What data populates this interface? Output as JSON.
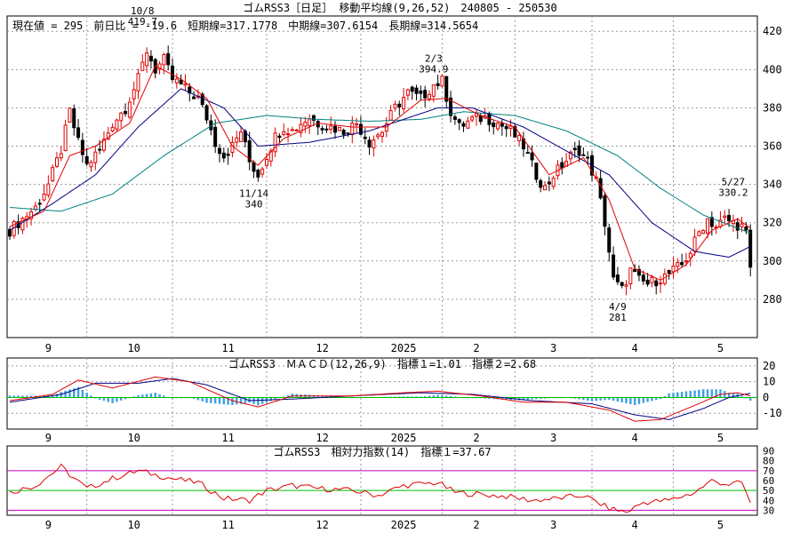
{
  "chart_data": [
    {
      "type": "candlestick",
      "panel": "price",
      "title": "ゴムRSS3［日足］ 移動平均線(9,26,52)　240805 - 250530",
      "info": "現在値 = 295　前日比 = -19.6　短期線=317.1778　中期線=307.6154　長期線=314.5654",
      "y_ticks": [
        420,
        400,
        380,
        360,
        340,
        320,
        300,
        280
      ],
      "ylim": [
        260,
        428
      ],
      "x_ticks": [
        "9",
        "10",
        "11",
        "12",
        "2025",
        "2",
        "3",
        "4",
        "5"
      ],
      "annotations": [
        {
          "date": "10/8",
          "value": "419.7"
        },
        {
          "date": "11/14",
          "value": "340"
        },
        {
          "date": "2/3",
          "value": "394.9"
        },
        {
          "date": "4/9",
          "value": "281"
        },
        {
          "date": "5/27",
          "value": "330.2"
        }
      ],
      "close_path": [
        {
          "t": 0,
          "v": 316
        },
        {
          "t": 3,
          "v": 322
        },
        {
          "t": 6,
          "v": 328
        },
        {
          "t": 9,
          "v": 340
        },
        {
          "t": 12,
          "v": 358
        },
        {
          "t": 14,
          "v": 378
        },
        {
          "t": 16,
          "v": 362
        },
        {
          "t": 18,
          "v": 350
        },
        {
          "t": 21,
          "v": 358
        },
        {
          "t": 24,
          "v": 372
        },
        {
          "t": 27,
          "v": 380
        },
        {
          "t": 30,
          "v": 395
        },
        {
          "t": 32,
          "v": 410
        },
        {
          "t": 34,
          "v": 400
        },
        {
          "t": 36,
          "v": 405
        },
        {
          "t": 38,
          "v": 395
        },
        {
          "t": 40,
          "v": 392
        },
        {
          "t": 42,
          "v": 388
        },
        {
          "t": 44,
          "v": 385
        },
        {
          "t": 46,
          "v": 375
        },
        {
          "t": 48,
          "v": 362
        },
        {
          "t": 50,
          "v": 355
        },
        {
          "t": 52,
          "v": 360
        },
        {
          "t": 54,
          "v": 368
        },
        {
          "t": 56,
          "v": 352
        },
        {
          "t": 58,
          "v": 345
        },
        {
          "t": 60,
          "v": 355
        },
        {
          "t": 62,
          "v": 365
        },
        {
          "t": 64,
          "v": 370
        },
        {
          "t": 66,
          "v": 368
        },
        {
          "t": 68,
          "v": 372
        },
        {
          "t": 70,
          "v": 375
        },
        {
          "t": 72,
          "v": 372
        },
        {
          "t": 75,
          "v": 370
        },
        {
          "t": 78,
          "v": 368
        },
        {
          "t": 81,
          "v": 372
        },
        {
          "t": 84,
          "v": 362
        },
        {
          "t": 87,
          "v": 368
        },
        {
          "t": 90,
          "v": 380
        },
        {
          "t": 93,
          "v": 388
        },
        {
          "t": 96,
          "v": 385
        },
        {
          "t": 99,
          "v": 392
        },
        {
          "t": 101,
          "v": 394
        },
        {
          "t": 103,
          "v": 378
        },
        {
          "t": 105,
          "v": 370
        },
        {
          "t": 108,
          "v": 374
        },
        {
          "t": 111,
          "v": 375
        },
        {
          "t": 114,
          "v": 372
        },
        {
          "t": 117,
          "v": 368
        },
        {
          "t": 120,
          "v": 360
        },
        {
          "t": 123,
          "v": 345
        },
        {
          "t": 125,
          "v": 338
        },
        {
          "t": 127,
          "v": 345
        },
        {
          "t": 129,
          "v": 350
        },
        {
          "t": 131,
          "v": 355
        },
        {
          "t": 133,
          "v": 358
        },
        {
          "t": 135,
          "v": 352
        },
        {
          "t": 137,
          "v": 342
        },
        {
          "t": 139,
          "v": 320
        },
        {
          "t": 141,
          "v": 290
        },
        {
          "t": 143,
          "v": 285
        },
        {
          "t": 145,
          "v": 295
        },
        {
          "t": 147,
          "v": 290
        },
        {
          "t": 149,
          "v": 288
        },
        {
          "t": 151,
          "v": 290
        },
        {
          "t": 153,
          "v": 292
        },
        {
          "t": 155,
          "v": 295
        },
        {
          "t": 157,
          "v": 298
        },
        {
          "t": 159,
          "v": 305
        },
        {
          "t": 161,
          "v": 315
        },
        {
          "t": 163,
          "v": 322
        },
        {
          "t": 165,
          "v": 318
        },
        {
          "t": 167,
          "v": 322
        },
        {
          "t": 169,
          "v": 320
        },
        {
          "t": 171,
          "v": 318
        },
        {
          "t": 172,
          "v": 314
        },
        {
          "t": 173,
          "v": 295
        }
      ],
      "series": [
        {
          "name": "短期線",
          "value": 317.1778,
          "color": "#e00000"
        },
        {
          "name": "中期線",
          "value": 307.6154,
          "color": "#000080"
        },
        {
          "name": "長期線",
          "value": 314.5654,
          "color": "#008080"
        }
      ],
      "ma_paths": {
        "short": [
          {
            "t": 0,
            "v": 318
          },
          {
            "t": 8,
            "v": 326
          },
          {
            "t": 14,
            "v": 355
          },
          {
            "t": 20,
            "v": 360
          },
          {
            "t": 28,
            "v": 372
          },
          {
            "t": 34,
            "v": 402
          },
          {
            "t": 40,
            "v": 395
          },
          {
            "t": 46,
            "v": 385
          },
          {
            "t": 52,
            "v": 360
          },
          {
            "t": 58,
            "v": 350
          },
          {
            "t": 64,
            "v": 364
          },
          {
            "t": 72,
            "v": 372
          },
          {
            "t": 80,
            "v": 370
          },
          {
            "t": 88,
            "v": 370
          },
          {
            "t": 96,
            "v": 384
          },
          {
            "t": 102,
            "v": 385
          },
          {
            "t": 110,
            "v": 376
          },
          {
            "t": 118,
            "v": 370
          },
          {
            "t": 126,
            "v": 345
          },
          {
            "t": 134,
            "v": 354
          },
          {
            "t": 140,
            "v": 332
          },
          {
            "t": 146,
            "v": 296
          },
          {
            "t": 152,
            "v": 290
          },
          {
            "t": 158,
            "v": 298
          },
          {
            "t": 164,
            "v": 316
          },
          {
            "t": 170,
            "v": 322
          },
          {
            "t": 173,
            "v": 317.2
          }
        ],
        "mid": [
          {
            "t": 0,
            "v": 316
          },
          {
            "t": 10,
            "v": 330
          },
          {
            "t": 20,
            "v": 345
          },
          {
            "t": 30,
            "v": 370
          },
          {
            "t": 40,
            "v": 390
          },
          {
            "t": 50,
            "v": 380
          },
          {
            "t": 58,
            "v": 360
          },
          {
            "t": 70,
            "v": 362
          },
          {
            "t": 84,
            "v": 368
          },
          {
            "t": 100,
            "v": 380
          },
          {
            "t": 108,
            "v": 380
          },
          {
            "t": 120,
            "v": 370
          },
          {
            "t": 132,
            "v": 355
          },
          {
            "t": 140,
            "v": 345
          },
          {
            "t": 150,
            "v": 320
          },
          {
            "t": 160,
            "v": 305
          },
          {
            "t": 168,
            "v": 302
          },
          {
            "t": 173,
            "v": 307.6
          }
        ],
        "long": [
          {
            "t": 0,
            "v": 328
          },
          {
            "t": 12,
            "v": 326
          },
          {
            "t": 24,
            "v": 335
          },
          {
            "t": 36,
            "v": 355
          },
          {
            "t": 48,
            "v": 372
          },
          {
            "t": 60,
            "v": 376
          },
          {
            "t": 72,
            "v": 374
          },
          {
            "t": 84,
            "v": 373
          },
          {
            "t": 96,
            "v": 374
          },
          {
            "t": 106,
            "v": 378
          },
          {
            "t": 118,
            "v": 376
          },
          {
            "t": 130,
            "v": 368
          },
          {
            "t": 142,
            "v": 355
          },
          {
            "t": 152,
            "v": 338
          },
          {
            "t": 162,
            "v": 324
          },
          {
            "t": 173,
            "v": 314.6
          }
        ]
      }
    },
    {
      "type": "line",
      "panel": "macd",
      "title": "ゴムRSS3　ＭＡＣＤ(12,26,9)　指標１=1.01　指標２=2.68",
      "y_ticks": [
        20,
        10,
        0,
        -10
      ],
      "ylim": [
        -20,
        25
      ],
      "x_ticks": [
        "9",
        "10",
        "11",
        "12",
        "2025",
        "2",
        "3",
        "4",
        "5"
      ],
      "series": [
        {
          "name": "指標１",
          "value": 1.01,
          "color": "#e00000",
          "path": [
            {
              "t": 0,
              "v": -2
            },
            {
              "t": 10,
              "v": 2
            },
            {
              "t": 16,
              "v": 11
            },
            {
              "t": 24,
              "v": 6
            },
            {
              "t": 34,
              "v": 13
            },
            {
              "t": 42,
              "v": 10
            },
            {
              "t": 52,
              "v": -2
            },
            {
              "t": 58,
              "v": -6
            },
            {
              "t": 66,
              "v": 1
            },
            {
              "t": 80,
              "v": 1
            },
            {
              "t": 92,
              "v": 3
            },
            {
              "t": 100,
              "v": 4
            },
            {
              "t": 110,
              "v": 1
            },
            {
              "t": 120,
              "v": -3
            },
            {
              "t": 130,
              "v": -3
            },
            {
              "t": 140,
              "v": -8
            },
            {
              "t": 146,
              "v": -15
            },
            {
              "t": 152,
              "v": -14
            },
            {
              "t": 160,
              "v": -5
            },
            {
              "t": 166,
              "v": 2
            },
            {
              "t": 170,
              "v": 3
            },
            {
              "t": 173,
              "v": 1.01
            }
          ]
        },
        {
          "name": "指標２",
          "value": 2.68,
          "color": "#000080",
          "path": [
            {
              "t": 0,
              "v": -3
            },
            {
              "t": 12,
              "v": 2
            },
            {
              "t": 20,
              "v": 9
            },
            {
              "t": 30,
              "v": 9
            },
            {
              "t": 38,
              "v": 12
            },
            {
              "t": 46,
              "v": 8
            },
            {
              "t": 56,
              "v": -2
            },
            {
              "t": 66,
              "v": -1
            },
            {
              "t": 80,
              "v": 1
            },
            {
              "t": 96,
              "v": 3
            },
            {
              "t": 108,
              "v": 2
            },
            {
              "t": 122,
              "v": -2
            },
            {
              "t": 136,
              "v": -4
            },
            {
              "t": 146,
              "v": -11
            },
            {
              "t": 154,
              "v": -14
            },
            {
              "t": 162,
              "v": -7
            },
            {
              "t": 168,
              "v": 0
            },
            {
              "t": 173,
              "v": 2.68
            }
          ]
        }
      ],
      "histogram_color": "#3fa0e0",
      "zero_line_color": "#00c000"
    },
    {
      "type": "line",
      "panel": "rsi",
      "title": "ゴムRSS3　相対力指数(14)　指標１=37.67",
      "y_ticks": [
        90,
        80,
        70,
        60,
        50,
        40,
        30
      ],
      "ylim": [
        25,
        95
      ],
      "reference_lines": [
        {
          "value": 70,
          "color": "#c000c0"
        },
        {
          "value": 50,
          "color": "#00c000"
        },
        {
          "value": 30,
          "color": "#c000c0"
        }
      ],
      "x_ticks": [
        "9",
        "10",
        "11",
        "12",
        "2025",
        "2",
        "3",
        "4",
        "5"
      ],
      "series": [
        {
          "name": "指標１",
          "value": 37.67,
          "color": "#e00000",
          "path": [
            {
              "t": 0,
              "v": 48
            },
            {
              "t": 6,
              "v": 55
            },
            {
              "t": 12,
              "v": 74
            },
            {
              "t": 14,
              "v": 66
            },
            {
              "t": 18,
              "v": 52
            },
            {
              "t": 24,
              "v": 62
            },
            {
              "t": 30,
              "v": 70
            },
            {
              "t": 34,
              "v": 66
            },
            {
              "t": 38,
              "v": 62
            },
            {
              "t": 44,
              "v": 58
            },
            {
              "t": 50,
              "v": 42
            },
            {
              "t": 56,
              "v": 40
            },
            {
              "t": 60,
              "v": 50
            },
            {
              "t": 66,
              "v": 55
            },
            {
              "t": 72,
              "v": 52
            },
            {
              "t": 80,
              "v": 50
            },
            {
              "t": 86,
              "v": 45
            },
            {
              "t": 92,
              "v": 55
            },
            {
              "t": 100,
              "v": 58
            },
            {
              "t": 104,
              "v": 48
            },
            {
              "t": 110,
              "v": 46
            },
            {
              "t": 116,
              "v": 44
            },
            {
              "t": 122,
              "v": 40
            },
            {
              "t": 128,
              "v": 42
            },
            {
              "t": 134,
              "v": 45
            },
            {
              "t": 140,
              "v": 32
            },
            {
              "t": 144,
              "v": 28
            },
            {
              "t": 148,
              "v": 38
            },
            {
              "t": 154,
              "v": 40
            },
            {
              "t": 160,
              "v": 48
            },
            {
              "t": 164,
              "v": 60
            },
            {
              "t": 168,
              "v": 56
            },
            {
              "t": 171,
              "v": 58
            },
            {
              "t": 173,
              "v": 37.67
            }
          ]
        }
      ]
    }
  ],
  "x_axis": {
    "total_days": 174,
    "months": [
      {
        "label": "9",
        "t": 18
      },
      {
        "label": "10",
        "t": 38
      },
      {
        "label": "11",
        "t": 60
      },
      {
        "label": "12",
        "t": 82
      },
      {
        "label": "2025",
        "t": 101
      },
      {
        "label": "2",
        "t": 118
      },
      {
        "label": "3",
        "t": 136
      },
      {
        "label": "4",
        "t": 155
      },
      {
        "label": "5",
        "t": 175
      }
    ]
  }
}
